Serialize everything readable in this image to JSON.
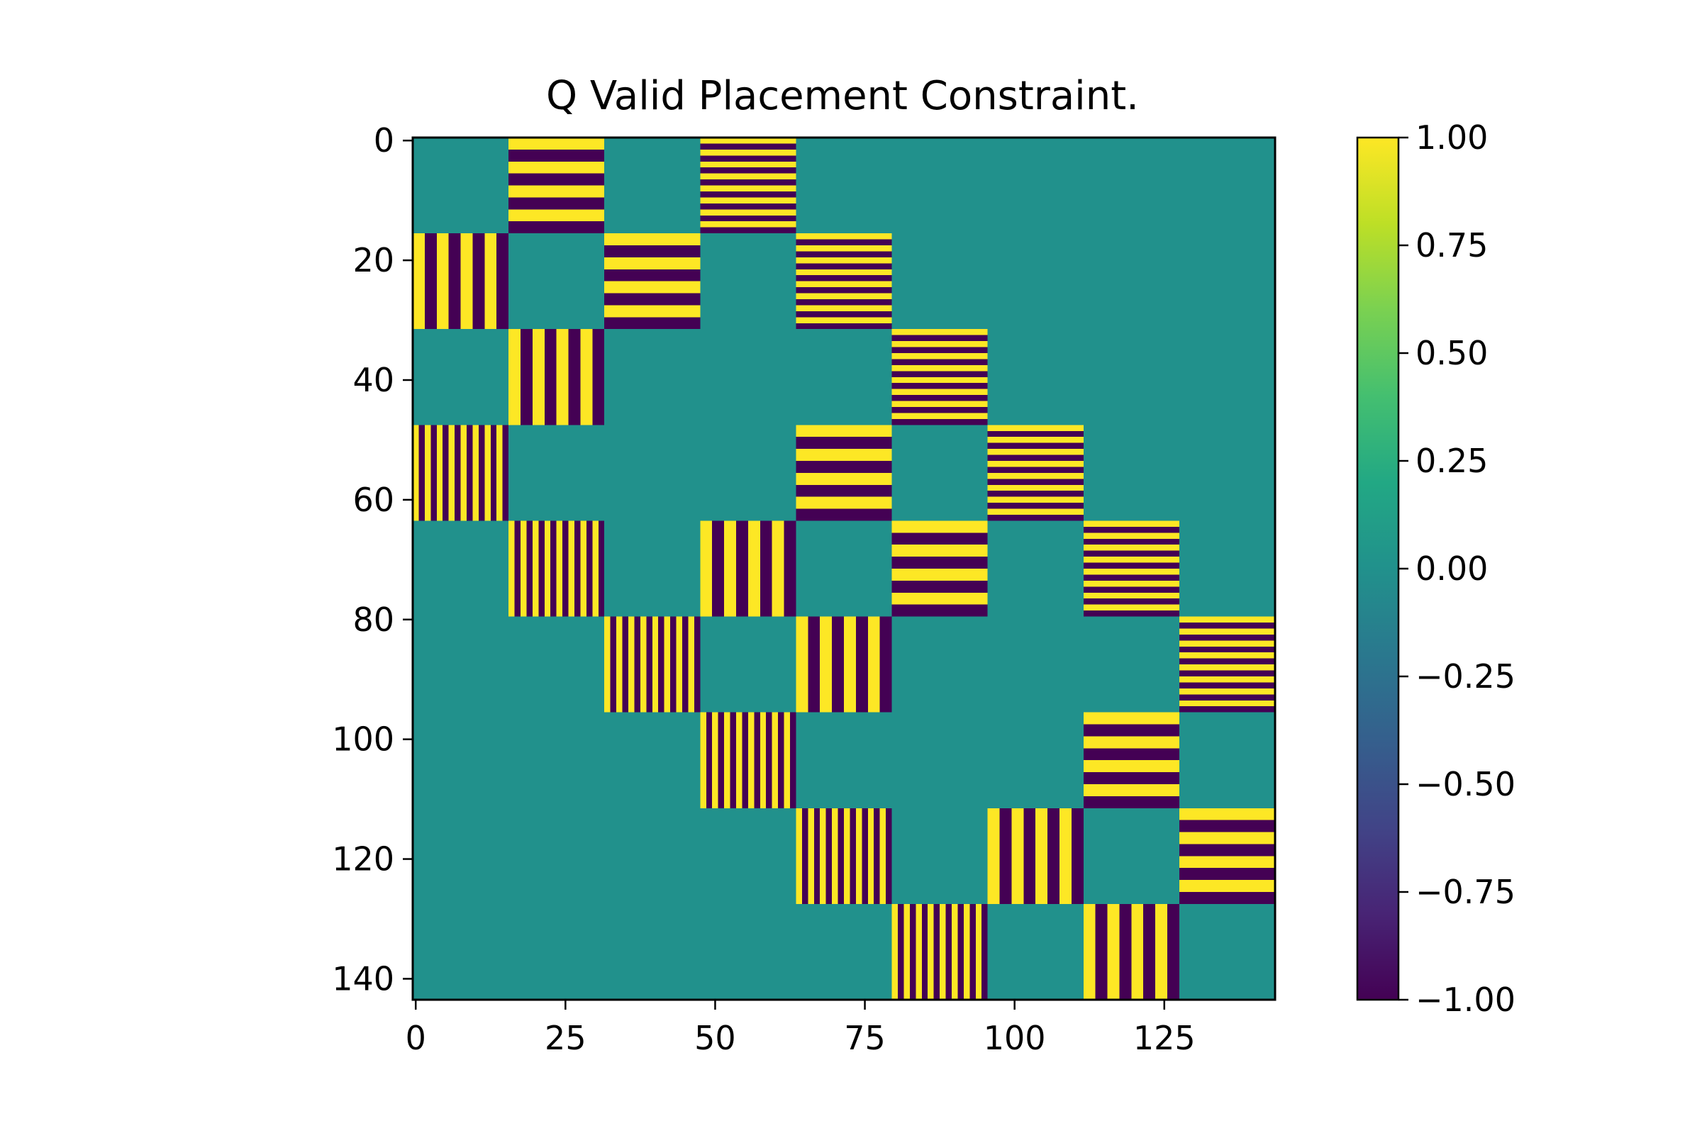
{
  "chart_data": {
    "type": "heatmap",
    "title": "Q Valid Placement Constraint.",
    "xlabel": "",
    "ylabel": "",
    "matrix_size": 144,
    "block_size": 16,
    "x_ticks": [
      0,
      25,
      50,
      75,
      100,
      125
    ],
    "y_ticks": [
      0,
      20,
      40,
      60,
      80,
      100,
      120,
      140
    ],
    "colorbar": {
      "min": -1.0,
      "max": 1.0,
      "ticks": [
        "1.00",
        "0.75",
        "0.50",
        "0.25",
        "0.00",
        "−0.25",
        "−0.50",
        "−0.75",
        "−1.00"
      ],
      "tick_values": [
        1.0,
        0.75,
        0.5,
        0.25,
        0.0,
        -0.25,
        -0.5,
        -0.75,
        -1.0
      ],
      "colormap": "viridis"
    },
    "value_levels": [
      -1,
      0,
      1
    ],
    "colors": {
      "neg_one": "#440154",
      "zero": "#21918c",
      "pos_one": "#fde725"
    },
    "background_value": 0,
    "nonzero_blocks": [
      {
        "block_row": 0,
        "block_col": 1,
        "pattern": "horizontal",
        "stripe_period": 2
      },
      {
        "block_row": 0,
        "block_col": 3,
        "pattern": "horizontal",
        "stripe_period": 1
      },
      {
        "block_row": 1,
        "block_col": 0,
        "pattern": "vertical",
        "stripe_period": 2
      },
      {
        "block_row": 1,
        "block_col": 2,
        "pattern": "horizontal",
        "stripe_period": 2
      },
      {
        "block_row": 1,
        "block_col": 4,
        "pattern": "horizontal",
        "stripe_period": 1
      },
      {
        "block_row": 2,
        "block_col": 1,
        "pattern": "vertical",
        "stripe_period": 2
      },
      {
        "block_row": 2,
        "block_col": 5,
        "pattern": "horizontal",
        "stripe_period": 1
      },
      {
        "block_row": 3,
        "block_col": 0,
        "pattern": "vertical",
        "stripe_period": 1
      },
      {
        "block_row": 3,
        "block_col": 4,
        "pattern": "horizontal",
        "stripe_period": 2
      },
      {
        "block_row": 3,
        "block_col": 6,
        "pattern": "horizontal",
        "stripe_period": 1
      },
      {
        "block_row": 4,
        "block_col": 1,
        "pattern": "vertical",
        "stripe_period": 1
      },
      {
        "block_row": 4,
        "block_col": 3,
        "pattern": "vertical",
        "stripe_period": 2
      },
      {
        "block_row": 4,
        "block_col": 5,
        "pattern": "horizontal",
        "stripe_period": 2
      },
      {
        "block_row": 4,
        "block_col": 7,
        "pattern": "horizontal",
        "stripe_period": 1
      },
      {
        "block_row": 5,
        "block_col": 2,
        "pattern": "vertical",
        "stripe_period": 1
      },
      {
        "block_row": 5,
        "block_col": 4,
        "pattern": "vertical",
        "stripe_period": 2
      },
      {
        "block_row": 5,
        "block_col": 8,
        "pattern": "horizontal",
        "stripe_period": 1
      },
      {
        "block_row": 6,
        "block_col": 3,
        "pattern": "vertical",
        "stripe_period": 1
      },
      {
        "block_row": 6,
        "block_col": 7,
        "pattern": "horizontal",
        "stripe_period": 2
      },
      {
        "block_row": 7,
        "block_col": 4,
        "pattern": "vertical",
        "stripe_period": 1
      },
      {
        "block_row": 7,
        "block_col": 6,
        "pattern": "vertical",
        "stripe_period": 2
      },
      {
        "block_row": 7,
        "block_col": 8,
        "pattern": "horizontal",
        "stripe_period": 2
      },
      {
        "block_row": 8,
        "block_col": 5,
        "pattern": "vertical",
        "stripe_period": 1
      },
      {
        "block_row": 8,
        "block_col": 7,
        "pattern": "vertical",
        "stripe_period": 2
      }
    ]
  }
}
